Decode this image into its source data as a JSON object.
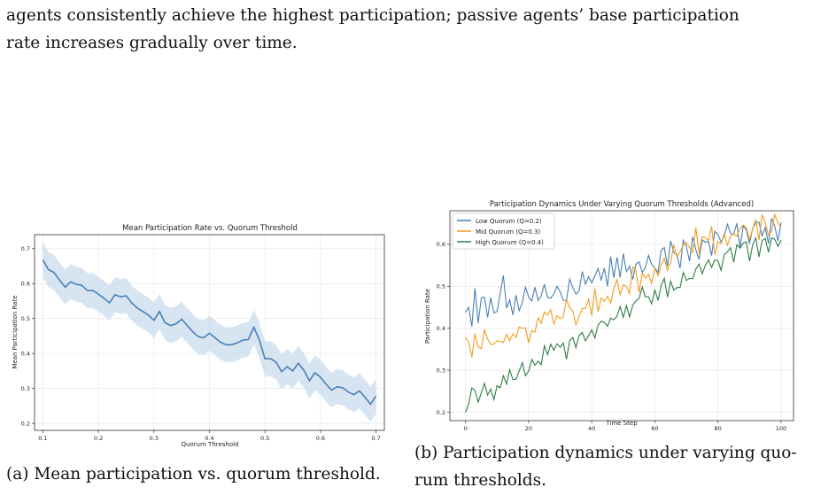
{
  "body_text": {
    "line1": "agents consistently achieve the highest participation; passive agents’ base participation",
    "line2": "rate increases gradually over time."
  },
  "figures": {
    "a": {
      "caption": "(a) Mean participation vs. quorum threshold."
    },
    "b": {
      "caption_line1": "(b) Participation dynamics under varying quo-",
      "caption_line2": "rum thresholds."
    }
  },
  "chart_data": [
    {
      "type": "line",
      "title": "Mean Participation Rate vs. Quorum Threshold",
      "xlabel": "Quorum Threshold",
      "ylabel": "Mean Participation Rate",
      "xlim": [
        0.085,
        0.715
      ],
      "ylim": [
        0.18,
        0.74
      ],
      "xticks": [
        0.1,
        0.2,
        0.3,
        0.4,
        0.5,
        0.6,
        0.7
      ],
      "xtick_labels": [
        "0.1",
        "0.2",
        "0.3",
        "0.4",
        "0.5",
        "0.6",
        "0.7"
      ],
      "yticks": [
        0.2,
        0.3,
        0.4,
        0.5,
        0.6,
        0.7
      ],
      "ytick_labels": [
        "0.2",
        "0.3",
        "0.4",
        "0.5",
        "0.6",
        "0.7"
      ],
      "grid": true,
      "color": "#4a7fb5",
      "band_color": "#c9dcee",
      "band_half_width": 0.05,
      "x": [
        0.1,
        0.11,
        0.12,
        0.13,
        0.14,
        0.15,
        0.16,
        0.17,
        0.18,
        0.19,
        0.2,
        0.21,
        0.22,
        0.23,
        0.24,
        0.25,
        0.26,
        0.27,
        0.28,
        0.29,
        0.3,
        0.31,
        0.32,
        0.33,
        0.34,
        0.35,
        0.36,
        0.37,
        0.38,
        0.39,
        0.4,
        0.41,
        0.42,
        0.43,
        0.44,
        0.45,
        0.46,
        0.47,
        0.48,
        0.49,
        0.5,
        0.51,
        0.52,
        0.53,
        0.54,
        0.55,
        0.56,
        0.57,
        0.58,
        0.59,
        0.6,
        0.61,
        0.62,
        0.63,
        0.64,
        0.65,
        0.66,
        0.67,
        0.68,
        0.69,
        0.7
      ],
      "y": [
        0.668,
        0.64,
        0.632,
        0.61,
        0.59,
        0.605,
        0.598,
        0.595,
        0.58,
        0.58,
        0.57,
        0.558,
        0.545,
        0.568,
        0.562,
        0.565,
        0.545,
        0.53,
        0.52,
        0.51,
        0.495,
        0.52,
        0.488,
        0.48,
        0.485,
        0.498,
        0.48,
        0.462,
        0.448,
        0.445,
        0.458,
        0.445,
        0.432,
        0.425,
        0.425,
        0.43,
        0.438,
        0.44,
        0.475,
        0.438,
        0.385,
        0.385,
        0.375,
        0.348,
        0.362,
        0.35,
        0.372,
        0.352,
        0.322,
        0.345,
        0.332,
        0.312,
        0.295,
        0.305,
        0.302,
        0.29,
        0.282,
        0.293,
        0.275,
        0.255,
        0.278
      ]
    },
    {
      "type": "line",
      "title": "Participation Dynamics Under Varying Quorum Thresholds (Advanced)",
      "xlabel": "Time Step",
      "ylabel": "Participation Rate",
      "xlim": [
        -4.95,
        103.95
      ],
      "ylim": [
        0.18,
        0.68
      ],
      "xticks": [
        0,
        20,
        40,
        60,
        80,
        100
      ],
      "xtick_labels": [
        "0",
        "20",
        "40",
        "60",
        "80",
        "100"
      ],
      "yticks": [
        0.2,
        0.3,
        0.4,
        0.5,
        0.6
      ],
      "ytick_labels": [
        "0.2",
        "0.3",
        "0.4",
        "0.5",
        "0.6"
      ],
      "grid": true,
      "legend_position": "top-left",
      "series": [
        {
          "name": "Low Quorum (Q=0.2)",
          "color": "#4a7fb5",
          "values": [
            0.438,
            0.45,
            0.404,
            0.495,
            0.412,
            0.472,
            0.474,
            0.426,
            0.473,
            0.437,
            0.44,
            0.483,
            0.526,
            0.448,
            0.468,
            0.432,
            0.479,
            0.442,
            0.461,
            0.498,
            0.475,
            0.465,
            0.498,
            0.466,
            0.477,
            0.505,
            0.473,
            0.472,
            0.482,
            0.5,
            0.487,
            0.467,
            0.466,
            0.517,
            0.497,
            0.481,
            0.489,
            0.535,
            0.505,
            0.523,
            0.508,
            0.525,
            0.542,
            0.515,
            0.543,
            0.5,
            0.571,
            0.52,
            0.569,
            0.521,
            0.578,
            0.535,
            0.548,
            0.517,
            0.553,
            0.558,
            0.533,
            0.544,
            0.574,
            0.552,
            0.544,
            0.533,
            0.586,
            0.592,
            0.548,
            0.608,
            0.581,
            0.575,
            0.543,
            0.61,
            0.595,
            0.56,
            0.618,
            0.587,
            0.564,
            0.611,
            0.605,
            0.607,
            0.573,
            0.631,
            0.623,
            0.606,
            0.62,
            0.648,
            0.626,
            0.624,
            0.65,
            0.592,
            0.644,
            0.634,
            0.602,
            0.638,
            0.651,
            0.653,
            0.62,
            0.64,
            0.602,
            0.662,
            0.643,
            0.608,
            0.652
          ]
        },
        {
          "name": "Mid Quorum (Q=0.3)",
          "color": "#f39c1e",
          "values": [
            0.378,
            0.367,
            0.331,
            0.387,
            0.356,
            0.351,
            0.397,
            0.374,
            0.361,
            0.363,
            0.37,
            0.369,
            0.366,
            0.386,
            0.37,
            0.387,
            0.378,
            0.403,
            0.4,
            0.401,
            0.365,
            0.395,
            0.391,
            0.425,
            0.412,
            0.439,
            0.431,
            0.444,
            0.41,
            0.43,
            0.423,
            0.427,
            0.469,
            0.449,
            0.441,
            0.408,
            0.428,
            0.447,
            0.447,
            0.469,
            0.43,
            0.495,
            0.44,
            0.472,
            0.464,
            0.476,
            0.46,
            0.494,
            0.516,
            0.48,
            0.504,
            0.5,
            0.483,
            0.546,
            0.538,
            0.485,
            0.531,
            0.519,
            0.529,
            0.507,
            0.544,
            0.525,
            0.55,
            0.567,
            0.538,
            0.556,
            0.599,
            0.57,
            0.582,
            0.598,
            0.604,
            0.592,
            0.581,
            0.64,
            0.579,
            0.618,
            0.617,
            0.609,
            0.643,
            0.575,
            0.607,
            0.602,
            0.625,
            0.598,
            0.619,
            0.625,
            0.619,
            0.638,
            0.646,
            0.64,
            0.611,
            0.636,
            0.66,
            0.61,
            0.671,
            0.652,
            0.622,
            0.631,
            0.671,
            0.651,
            0.64
          ]
        },
        {
          "name": "High Quorum (Q=0.4)",
          "color": "#2e7d46",
          "values": [
            0.2,
            0.22,
            0.258,
            0.252,
            0.224,
            0.246,
            0.269,
            0.241,
            0.255,
            0.23,
            0.263,
            0.258,
            0.287,
            0.267,
            0.301,
            0.278,
            0.278,
            0.298,
            0.318,
            0.287,
            0.298,
            0.326,
            0.312,
            0.322,
            0.313,
            0.358,
            0.337,
            0.362,
            0.348,
            0.363,
            0.355,
            0.365,
            0.326,
            0.37,
            0.378,
            0.354,
            0.383,
            0.39,
            0.37,
            0.382,
            0.396,
            0.377,
            0.407,
            0.417,
            0.414,
            0.405,
            0.424,
            0.42,
            0.429,
            0.452,
            0.426,
            0.454,
            0.427,
            0.455,
            0.465,
            0.471,
            0.498,
            0.475,
            0.475,
            0.458,
            0.492,
            0.466,
            0.502,
            0.519,
            0.474,
            0.512,
            0.491,
            0.497,
            0.497,
            0.533,
            0.514,
            0.519,
            0.518,
            0.541,
            0.553,
            0.53,
            0.549,
            0.563,
            0.545,
            0.563,
            0.561,
            0.538,
            0.576,
            0.582,
            0.592,
            0.557,
            0.599,
            0.591,
            0.603,
            0.606,
            0.56,
            0.599,
            0.615,
            0.57,
            0.609,
            0.614,
            0.581,
            0.615,
            0.612,
            0.595,
            0.61
          ]
        }
      ]
    }
  ]
}
